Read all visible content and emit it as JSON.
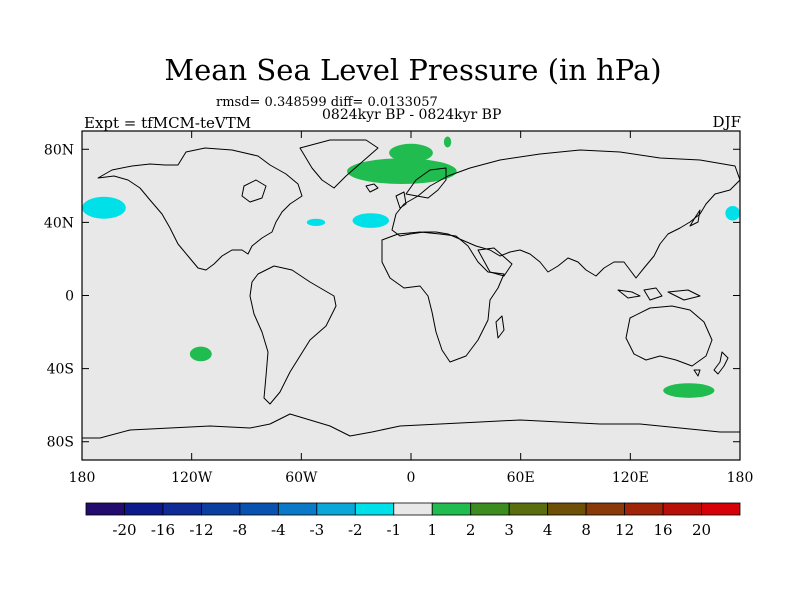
{
  "chart_data": {
    "type": "heatmap",
    "title": "Mean Sea Level Pressure (in hPa)",
    "stats_line": "rmsd= 0.348599 diff= 0.0133057",
    "period_line": "0824kyr BP - 0824kyr BP",
    "experiment_label": "Expt = tfMCM-teVTM",
    "season_label": "DJF",
    "map": {
      "projection": "cylindrical-equidistant",
      "lon_range": [
        -180,
        180
      ],
      "lat_range": [
        -90,
        90
      ],
      "x_ticks": [
        {
          "lon": -180,
          "label": "180"
        },
        {
          "lon": -120,
          "label": "120W"
        },
        {
          "lon": -60,
          "label": "60W"
        },
        {
          "lon": 0,
          "label": "0"
        },
        {
          "lon": 60,
          "label": "60E"
        },
        {
          "lon": 120,
          "label": "120E"
        },
        {
          "lon": 180,
          "label": "180"
        }
      ],
      "y_ticks": [
        {
          "lat": 80,
          "label": "80N"
        },
        {
          "lat": 40,
          "label": "40N"
        },
        {
          "lat": 0,
          "label": "0"
        },
        {
          "lat": -40,
          "label": "40S"
        },
        {
          "lat": -80,
          "label": "80S"
        }
      ],
      "background_color": "#e8e8e8"
    },
    "colorbar": {
      "boundaries": [
        "-20",
        "-16",
        "-12",
        "-8",
        "-4",
        "-3",
        "-2",
        "-1",
        "1",
        "2",
        "3",
        "4",
        "8",
        "12",
        "16",
        "20"
      ],
      "colors": [
        "#230c6e",
        "#0d1a8c",
        "#0e2b96",
        "#0a3fa0",
        "#0a52b0",
        "#0a79c8",
        "#0aa8d8",
        "#00e0e8",
        "#e8e8e8",
        "#20bc50",
        "#3c8c20",
        "#5a6e10",
        "#6e5008",
        "#8a3a08",
        "#a02408",
        "#b81008",
        "#d80008"
      ]
    },
    "anomalies": [
      {
        "name": "north-atlantic-high",
        "sign": "positive",
        "range": "1 to 2",
        "lon": -5,
        "lat": 68,
        "rx_deg": 30,
        "ry_deg": 7
      },
      {
        "name": "nordic-seas-high",
        "sign": "positive",
        "range": "1 to 2",
        "lon": 0,
        "lat": 78,
        "rx_deg": 12,
        "ry_deg": 5
      },
      {
        "name": "svalbard-high",
        "sign": "positive",
        "range": "1 to 2",
        "lon": 20,
        "lat": 84,
        "rx_deg": 2,
        "ry_deg": 3
      },
      {
        "name": "south-pacific-high",
        "sign": "positive",
        "range": "1 to 2",
        "lon": -115,
        "lat": -32,
        "rx_deg": 6,
        "ry_deg": 4
      },
      {
        "name": "southern-ocean-high",
        "sign": "positive",
        "range": "1 to 2",
        "lon": 152,
        "lat": -52,
        "rx_deg": 14,
        "ry_deg": 4
      },
      {
        "name": "north-pacific-low-west",
        "sign": "negative",
        "range": "-2 to -1",
        "lon": -168,
        "lat": 48,
        "rx_deg": 12,
        "ry_deg": 6
      },
      {
        "name": "north-pacific-low-east",
        "sign": "negative",
        "range": "-2 to -1",
        "lon": 176,
        "lat": 45,
        "rx_deg": 4,
        "ry_deg": 4
      },
      {
        "name": "mid-atlantic-low",
        "sign": "negative",
        "range": "-2 to -1",
        "lon": -52,
        "lat": 40,
        "rx_deg": 5,
        "ry_deg": 2
      },
      {
        "name": "east-atlantic-low",
        "sign": "negative",
        "range": "-2 to -1",
        "lon": -22,
        "lat": 41,
        "rx_deg": 10,
        "ry_deg": 4
      }
    ]
  }
}
